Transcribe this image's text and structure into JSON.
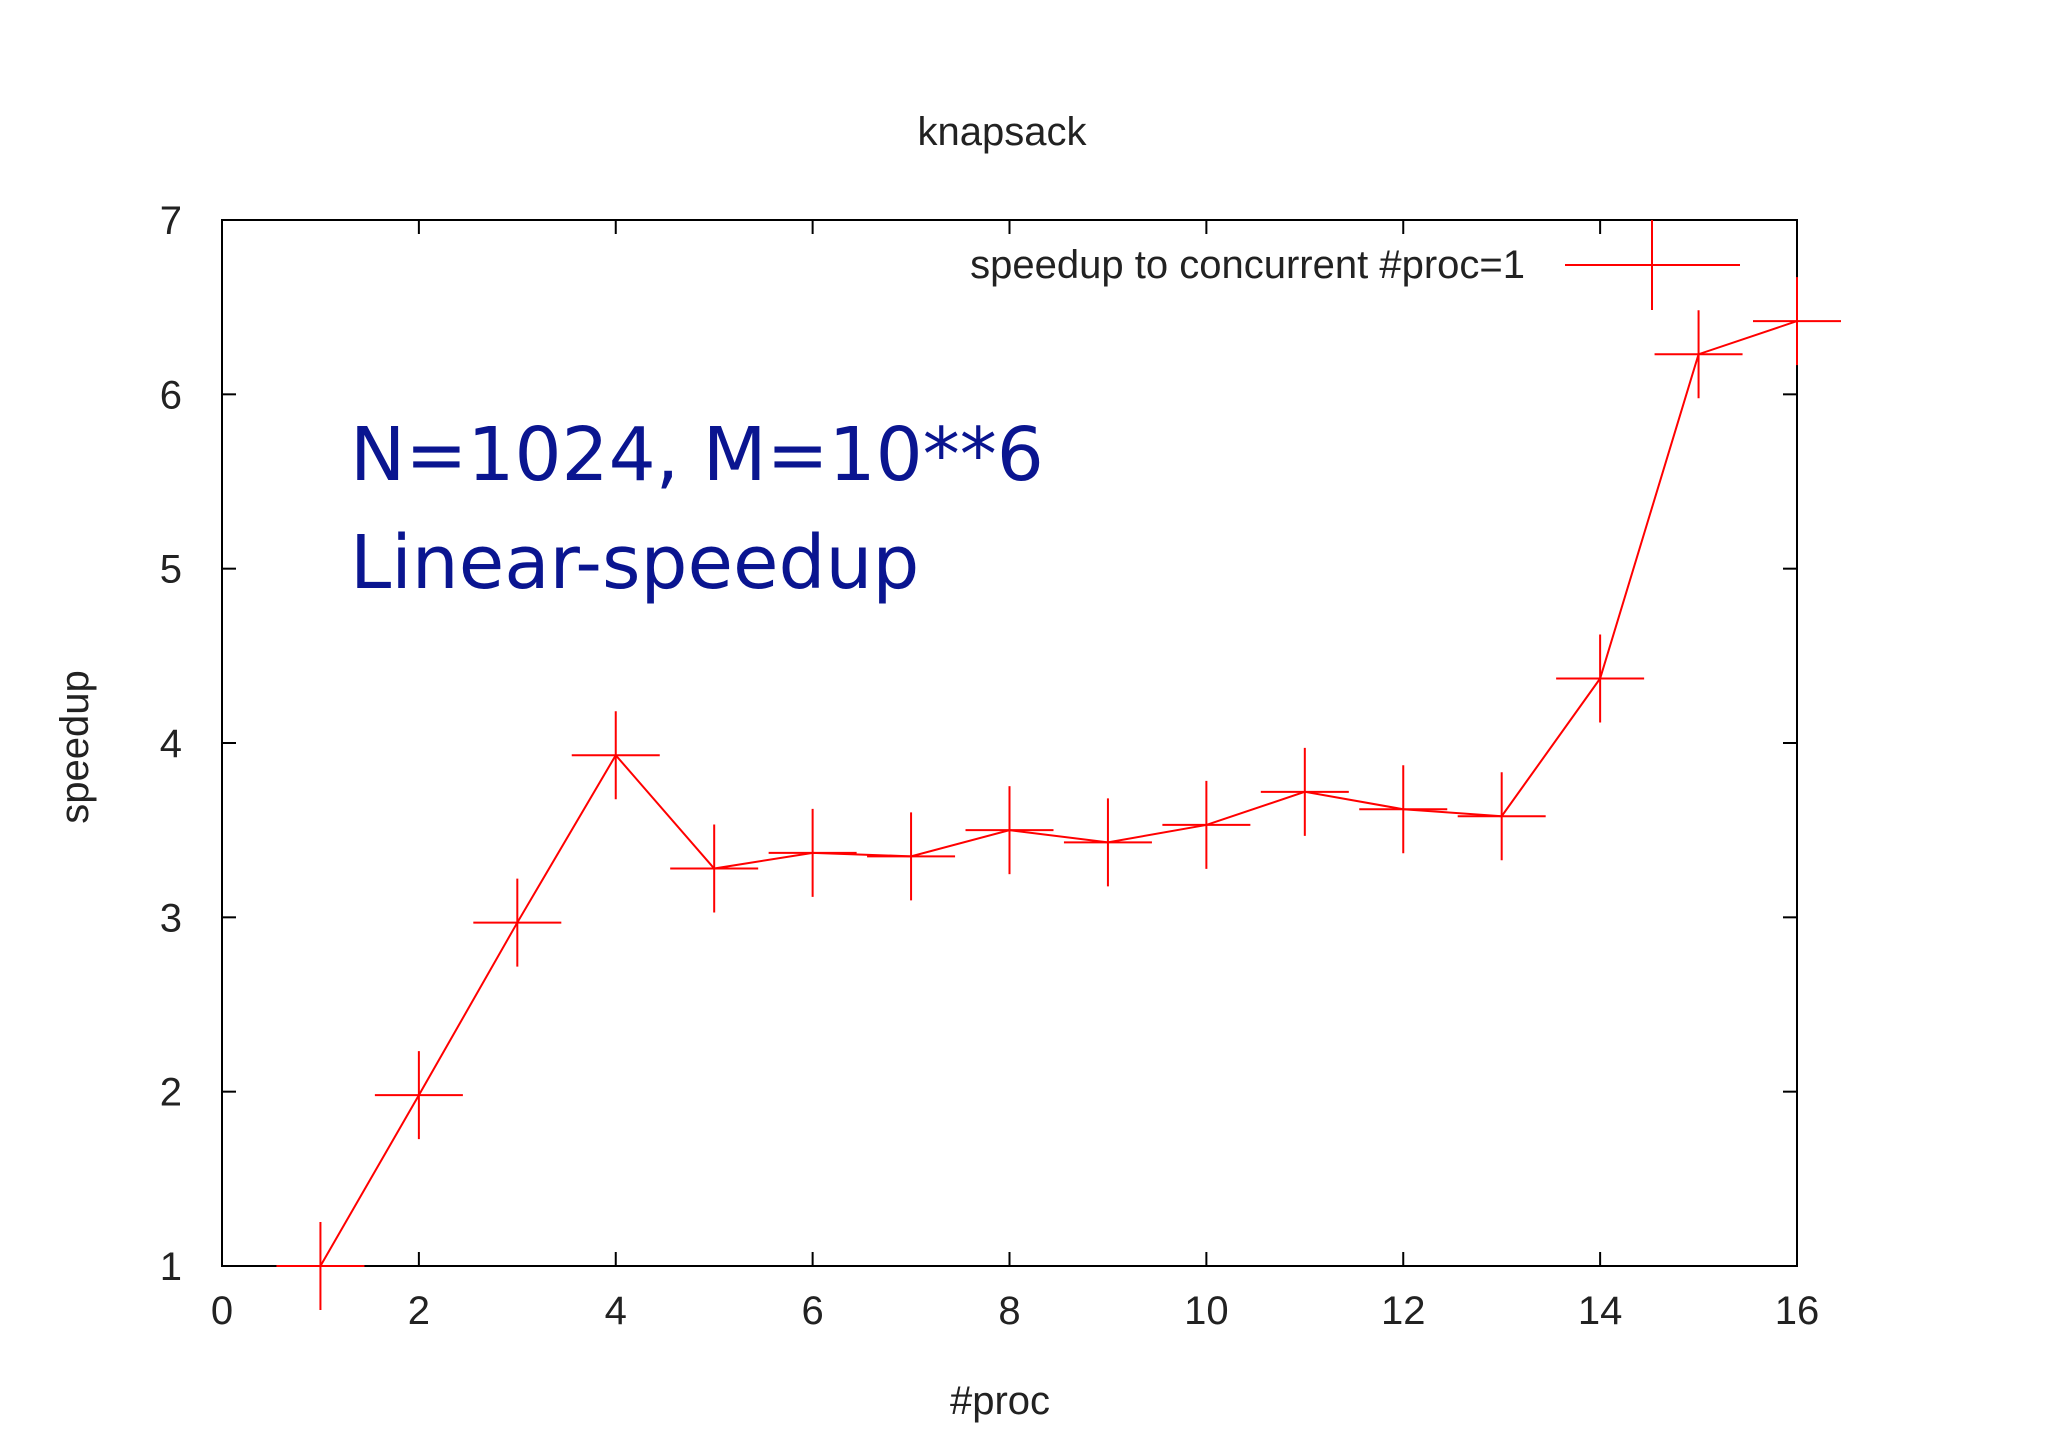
{
  "chart_data": {
    "type": "line",
    "title": "knapsack",
    "xlabel": "#proc",
    "ylabel": "speedup",
    "xlim": [
      0,
      16
    ],
    "ylim": [
      1,
      7
    ],
    "xticks": [
      "0",
      "2",
      "4",
      "6",
      "8",
      "10",
      "12",
      "14",
      "16"
    ],
    "yticks": [
      "1",
      "2",
      "3",
      "4",
      "5",
      "6",
      "7"
    ],
    "legend_position": "top-right",
    "grid": false,
    "series": [
      {
        "name": "speedup to concurrent #proc=1",
        "color": "#ff0000",
        "marker": "plus",
        "x": [
          1,
          2,
          3,
          4,
          5,
          6,
          7,
          8,
          9,
          10,
          11,
          12,
          13,
          14,
          15,
          16
        ],
        "y": [
          1.0,
          1.98,
          2.97,
          3.93,
          3.28,
          3.37,
          3.35,
          3.5,
          3.43,
          3.53,
          3.72,
          3.62,
          3.58,
          4.37,
          6.23,
          6.42
        ]
      }
    ],
    "annotations": [
      "N=1024, M=10**6",
      "Linear-speedup"
    ]
  }
}
